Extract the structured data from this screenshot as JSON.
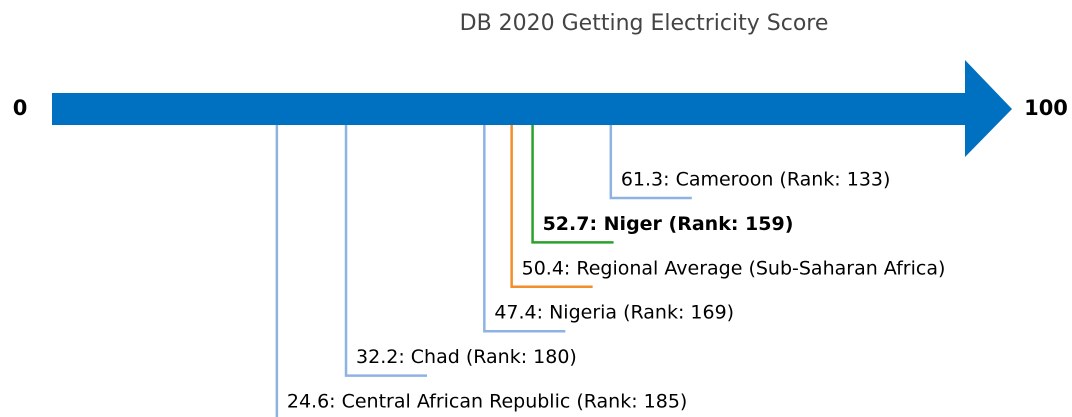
{
  "chart_data": {
    "type": "number-line",
    "title": "DB 2020 Getting Electricity Score",
    "xlim": [
      0,
      100
    ],
    "xticks": [
      0,
      100
    ],
    "arrow_color": "#0070c0",
    "values": [
      24.6,
      32.2,
      47.4,
      50.4,
      52.7,
      61.3
    ],
    "value_labels": [
      "24.6: Central African Republic (Rank: 185)",
      "32.2: Chad (Rank: 180)",
      "47.4: Nigeria (Rank: 169)",
      "50.4: Regional Average (Sub-Saharan Africa)",
      "52.7: Niger (Rank: 159)",
      "61.3: Cameroon (Rank: 133)"
    ],
    "colors": [
      "#8db3e2",
      "#8db3e2",
      "#8db3e2",
      "#f28e2b",
      "#2ca02c",
      "#8db3e2"
    ],
    "emphasis": [
      false,
      false,
      false,
      false,
      true,
      false
    ]
  }
}
